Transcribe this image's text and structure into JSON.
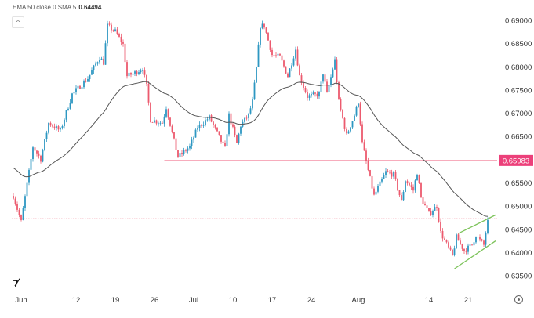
{
  "legend": {
    "text": "EMA 50 close 0 SMA 5",
    "value": "0.64494"
  },
  "collapse_icon": "chevron-up-icon",
  "logo": "TV",
  "settings_icon": "settings-icon",
  "chart_data": {
    "type": "candlestick",
    "title": "",
    "ylim": [
      0.635,
      0.69
    ],
    "y_ticks": [
      "0.69000",
      "0.68500",
      "0.68000",
      "0.67500",
      "0.67000",
      "0.66500",
      "0.65500",
      "0.65000",
      "0.64500",
      "0.64000",
      "0.63500"
    ],
    "y_tick_values": [
      0.69,
      0.685,
      0.68,
      0.675,
      0.67,
      0.665,
      0.655,
      0.65,
      0.645,
      0.64,
      0.635
    ],
    "x_ticks": [
      {
        "label": "Jun",
        "date": "2023-06-01"
      },
      {
        "label": "12",
        "date": "2023-06-12"
      },
      {
        "label": "19",
        "date": "2023-06-19"
      },
      {
        "label": "26",
        "date": "2023-06-26"
      },
      {
        "label": "Jul",
        "date": "2023-07-03"
      },
      {
        "label": "10",
        "date": "2023-07-10"
      },
      {
        "label": "17",
        "date": "2023-07-17"
      },
      {
        "label": "24",
        "date": "2023-07-24"
      },
      {
        "label": "Aug",
        "date": "2023-08-01"
      },
      {
        "label": "14",
        "date": "2023-08-14"
      },
      {
        "label": "21",
        "date": "2023-08-21"
      }
    ],
    "price_path": [
      [
        "2023-05-31",
        0.6522
      ],
      [
        "2023-06-01",
        0.6466
      ],
      [
        "2023-06-02",
        0.6573
      ],
      [
        "2023-06-02 12",
        0.6628
      ],
      [
        "2023-06-05 12",
        0.6601
      ],
      [
        "2023-06-06 12",
        0.6679
      ],
      [
        "2023-06-08",
        0.6662
      ],
      [
        "2023-06-09 12",
        0.6741
      ],
      [
        "2023-06-13 12",
        0.6775
      ],
      [
        "2023-06-15",
        0.6821
      ],
      [
        "2023-06-15 12",
        0.6809
      ],
      [
        "2023-06-16",
        0.6888
      ],
      [
        "2023-06-19",
        0.6876
      ],
      [
        "2023-06-20",
        0.6848
      ],
      [
        "2023-06-20 12",
        0.678
      ],
      [
        "2023-06-21 12",
        0.6787
      ],
      [
        "2023-06-22 12",
        0.6797
      ],
      [
        "2023-06-23",
        0.6758
      ],
      [
        "2023-06-23 12",
        0.6686
      ],
      [
        "2023-06-27",
        0.6679
      ],
      [
        "2023-06-27 12",
        0.6713
      ],
      [
        "2023-06-28 12",
        0.664
      ],
      [
        "2023-06-29",
        0.6606
      ],
      [
        "2023-06-30 12",
        0.6628
      ],
      [
        "2023-07-03 12",
        0.6669
      ],
      [
        "2023-07-05",
        0.6691
      ],
      [
        "2023-07-06",
        0.6657
      ],
      [
        "2023-07-07",
        0.6623
      ],
      [
        "2023-07-07 12",
        0.6696
      ],
      [
        "2023-07-10 12",
        0.6635
      ],
      [
        "2023-07-11",
        0.6674
      ],
      [
        "2023-07-12",
        0.6696
      ],
      [
        "2023-07-12 12",
        0.6725
      ],
      [
        "2023-07-13",
        0.6797
      ],
      [
        "2023-07-13 12",
        0.6888
      ],
      [
        "2023-07-14",
        0.6888
      ],
      [
        "2023-07-17",
        0.6826
      ],
      [
        "2023-07-18",
        0.6821
      ],
      [
        "2023-07-19",
        0.678
      ],
      [
        "2023-07-20",
        0.6838
      ],
      [
        "2023-07-20 12",
        0.678
      ],
      [
        "2023-07-21 12",
        0.6736
      ],
      [
        "2023-07-25",
        0.6741
      ],
      [
        "2023-07-25 12",
        0.6787
      ],
      [
        "2023-07-26",
        0.6741
      ],
      [
        "2023-07-27",
        0.6814
      ],
      [
        "2023-07-27 12",
        0.6725
      ],
      [
        "2023-07-28 12",
        0.6652
      ],
      [
        "2023-07-31 12",
        0.6696
      ],
      [
        "2023-08-01",
        0.6725
      ],
      [
        "2023-08-01 12",
        0.6635
      ],
      [
        "2023-08-02",
        0.6595
      ],
      [
        "2023-08-03",
        0.6522
      ],
      [
        "2023-08-04 12",
        0.6573
      ],
      [
        "2023-08-07 12",
        0.6568
      ],
      [
        "2023-08-08 12",
        0.651
      ],
      [
        "2023-08-09",
        0.6556
      ],
      [
        "2023-08-10",
        0.6534
      ],
      [
        "2023-08-10 12",
        0.6573
      ],
      [
        "2023-08-11",
        0.6517
      ],
      [
        "2023-08-14",
        0.6483
      ],
      [
        "2023-08-15",
        0.65
      ],
      [
        "2023-08-15 12",
        0.6443
      ],
      [
        "2023-08-17",
        0.6392
      ],
      [
        "2023-08-17 12",
        0.6433
      ],
      [
        "2023-08-18 12",
        0.6404
      ],
      [
        "2023-08-21 12",
        0.6416
      ],
      [
        "2023-08-22",
        0.6438
      ],
      [
        "2023-08-22 12",
        0.6426
      ],
      [
        "2023-08-23",
        0.6416
      ],
      [
        "2023-08-23 12",
        0.647
      ]
    ],
    "ema": {
      "period": 50,
      "color": "#555555"
    },
    "support_line": {
      "price": 0.65983,
      "label": "0.65983",
      "start": "2023-06-27 06",
      "color": "#f27a93",
      "label_bg": "#ec407a"
    },
    "last_price_line": {
      "price": 0.6473,
      "color": "#f4a7b4"
    },
    "channel": {
      "color": "#7cc35a",
      "upper": [
        [
          "2023-08-17 18",
          0.6441
        ],
        [
          "2023-08-24 12",
          0.6481
        ]
      ],
      "lower": [
        [
          "2023-08-17 06",
          0.6365
        ],
        [
          "2023-08-24 12",
          0.6425
        ]
      ]
    },
    "colors": {
      "up": "#2d97c2",
      "down": "#ec5a6e",
      "text": "#444444",
      "axis_text": "#333333"
    }
  }
}
